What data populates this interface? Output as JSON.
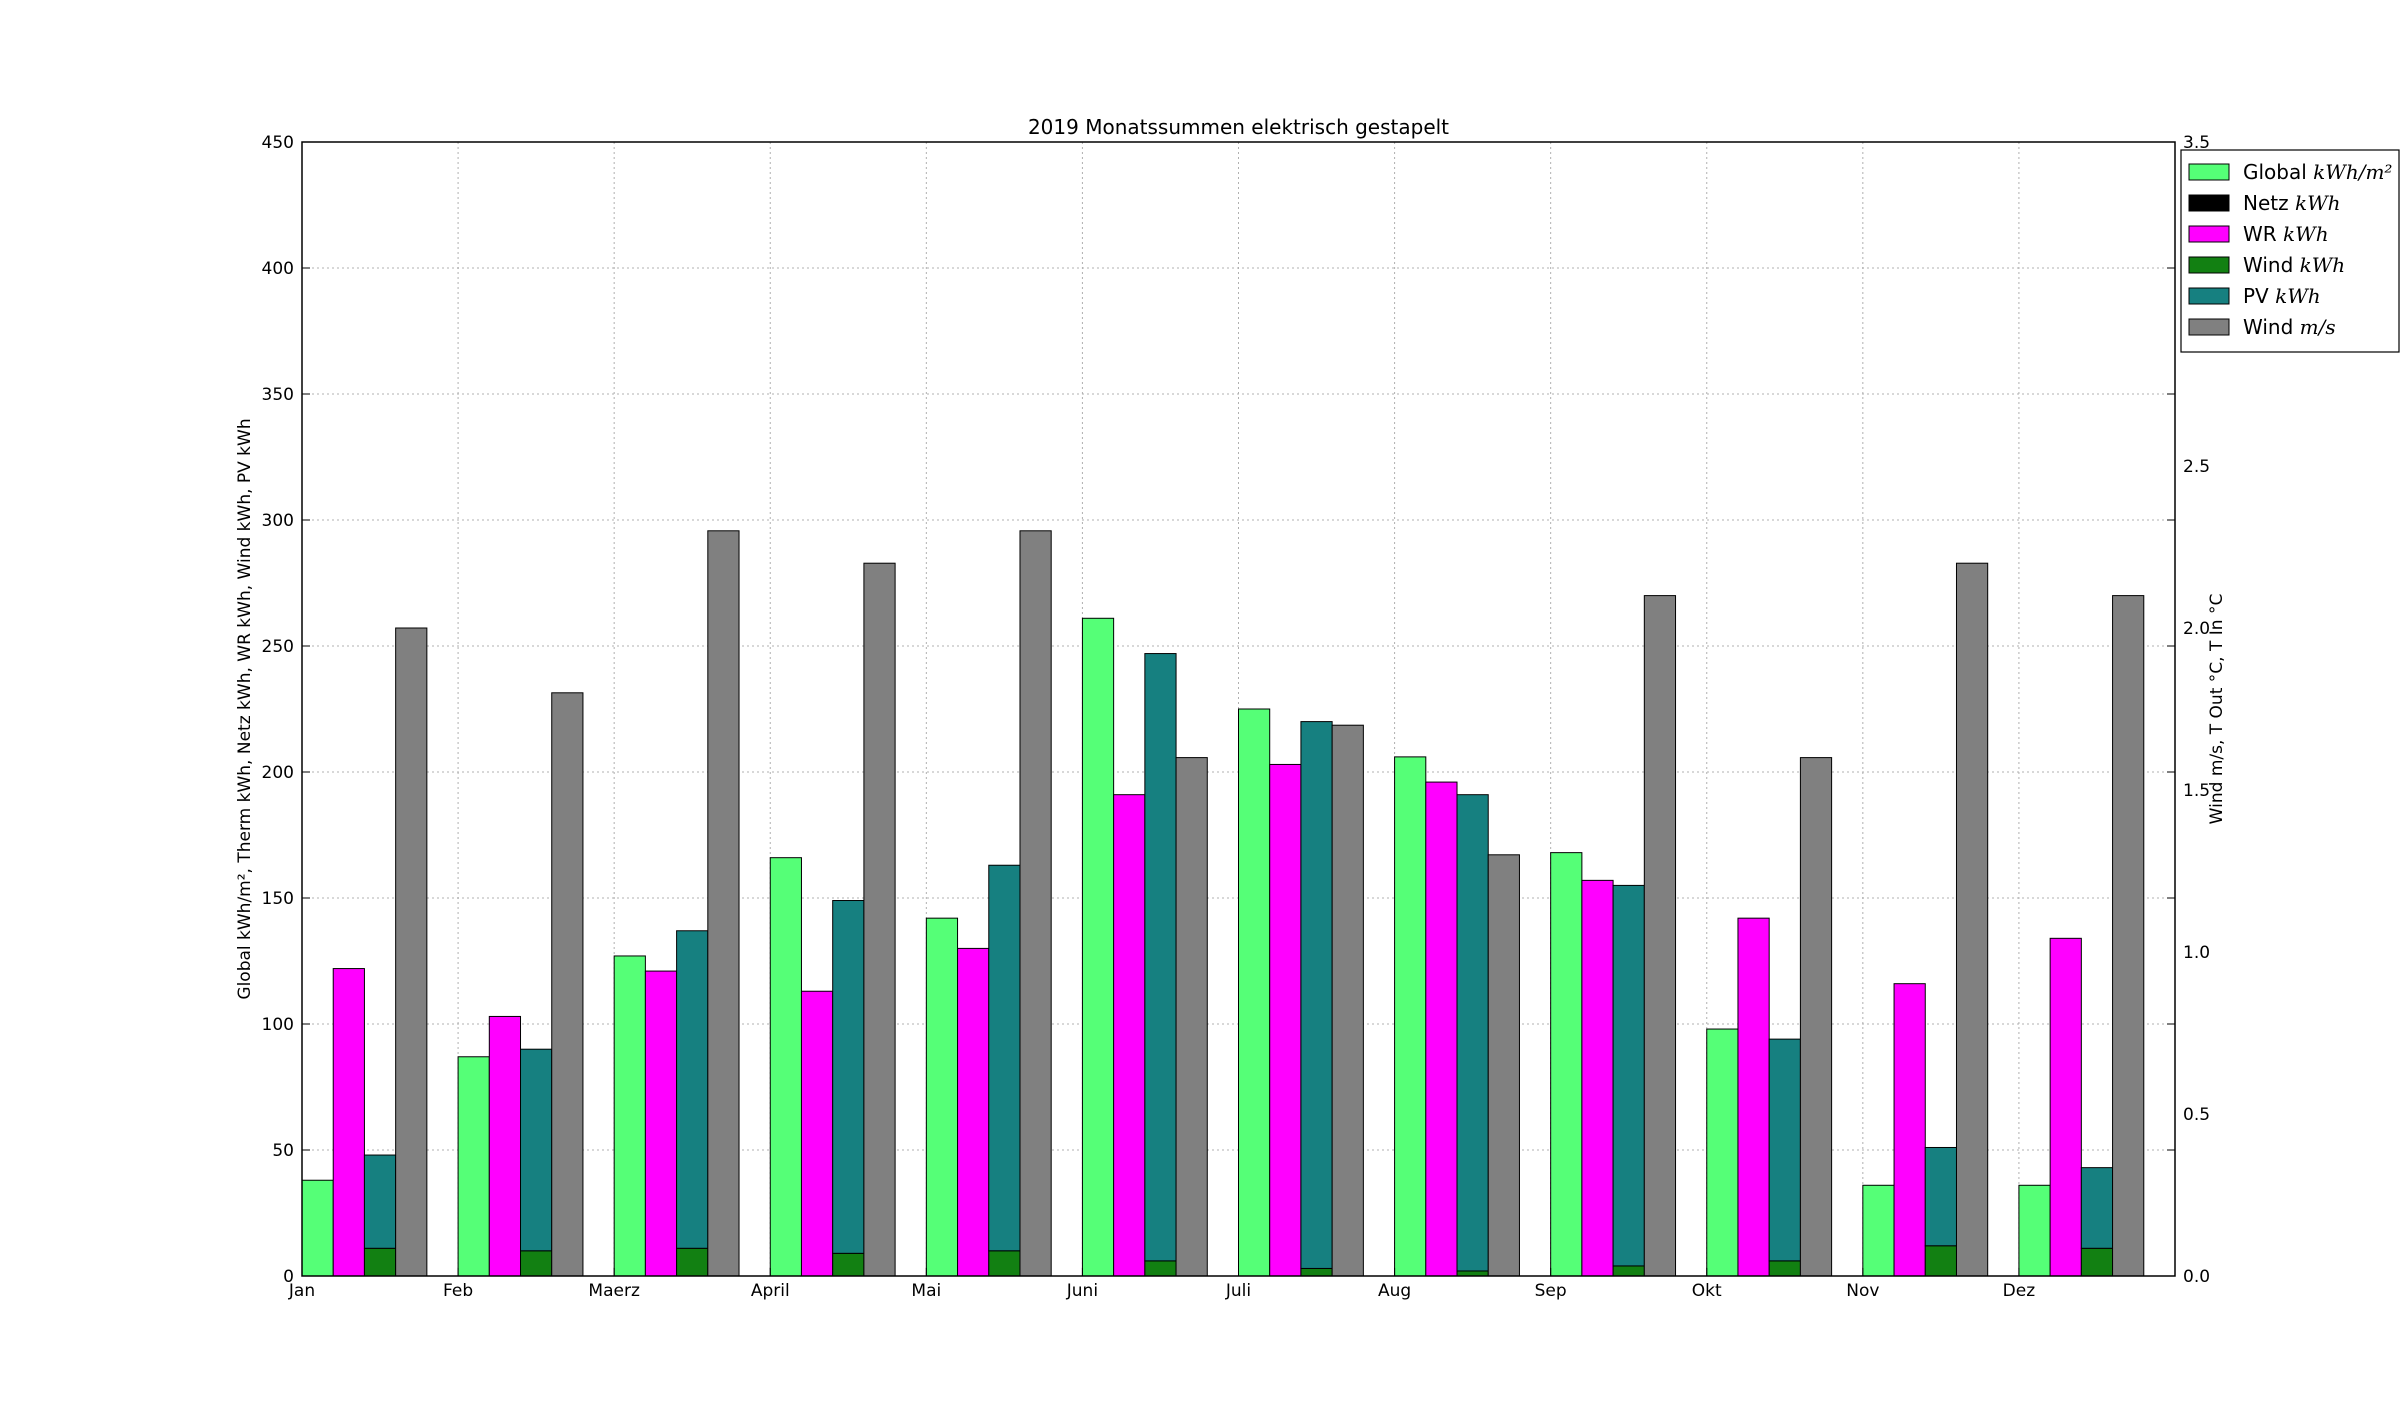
{
  "chart_data": {
    "type": "bar",
    "title": "2019 Monatssummen elektrisch gestapelt",
    "ylabel": "Global kWh/m², Therm kWh, Netz kWh, WR kWh, Wind kWh, PV kWh",
    "y2label": "Wind m/s, T Out °C, T In °C",
    "categories": [
      "Jan",
      "Feb",
      "Maerz",
      "April",
      "Mai",
      "Juni",
      "Juli",
      "Aug",
      "Sep",
      "Okt",
      "Nov",
      "Dez"
    ],
    "ylim": [
      0,
      450
    ],
    "y2lim": [
      0,
      3.5
    ],
    "yticks": [
      "0",
      "50",
      "100",
      "150",
      "200",
      "250",
      "300",
      "350",
      "400",
      "450"
    ],
    "y2ticks": [
      "0.0",
      "0.5",
      "1.0",
      "1.5",
      "2.0",
      "2.5",
      "3.0",
      "3.5"
    ],
    "grid": true,
    "legend_position": "top-right",
    "series": [
      {
        "name": "Global",
        "unit": "kWh/m²",
        "color": "#55ff77",
        "axis": "left",
        "values": [
          38,
          87,
          127,
          166,
          142,
          261,
          225,
          206,
          168,
          98,
          36,
          36
        ]
      },
      {
        "name": "Netz",
        "unit": "kWh",
        "color": "#000000",
        "axis": "left",
        "values": [
          0,
          0,
          0,
          0,
          0,
          0,
          0,
          0,
          0,
          0,
          0,
          0
        ]
      },
      {
        "name": "WR",
        "unit": "kWh",
        "color": "#ff00ff",
        "axis": "left",
        "values": [
          122,
          103,
          121,
          113,
          130,
          191,
          203,
          196,
          157,
          142,
          116,
          134
        ]
      },
      {
        "name": "Wind",
        "unit": "kWh",
        "color": "#128012",
        "axis": "left",
        "values": [
          11,
          10,
          11,
          9,
          10,
          6,
          3,
          2,
          4,
          6,
          12,
          11
        ]
      },
      {
        "name": "PV",
        "unit": "kWh",
        "color": "#168080",
        "axis": "left",
        "values": [
          37,
          80,
          126,
          140,
          153,
          241,
          217,
          189,
          151,
          88,
          39,
          32
        ]
      },
      {
        "name": "Wind",
        "unit": "m/s",
        "color": "#808080",
        "axis": "right",
        "values": [
          2.0,
          1.8,
          2.3,
          2.2,
          2.3,
          1.6,
          1.7,
          1.3,
          2.1,
          1.6,
          2.2,
          2.1
        ]
      }
    ]
  }
}
